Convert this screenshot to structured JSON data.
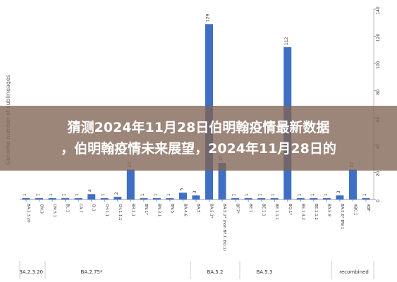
{
  "chart_data": {
    "type": "bar",
    "y_label": "Genome number of sublineages",
    "categories": [
      "BA.2.3.20",
      "CM.3",
      "CM.5.1",
      "BL.1",
      "CA.7",
      "CJ.1",
      "CH.1.1",
      "CH.1.1.1",
      "BR.2.1",
      "BN.1*",
      "BN.3.1",
      "BN.5",
      "BA.4.6",
      "BA.5",
      "BA.5.1*",
      "BA.5.2* (non BF.7, BQ.1)",
      "BF.7*",
      "BE.1",
      "BE.1.1",
      "BE.1.1.1",
      "BQ.1*",
      "BE.1.4.2",
      "BE.1.1.2",
      "BA.5.9",
      "BA.5.6* BW.1",
      "XBC.1",
      "XBF"
    ],
    "values": [
      1,
      1,
      1,
      1,
      1,
      4,
      1,
      2,
      22,
      1,
      1,
      1,
      5,
      3,
      129,
      27,
      1,
      1,
      1,
      1,
      112,
      1,
      1,
      1,
      3,
      22,
      1
    ],
    "color": "#3f6fc4",
    "groups": [
      "BA.2.3.20",
      "BA.2.75*",
      "BA.5.2",
      "BA.5.3",
      "recombined"
    ],
    "ylim": [
      0,
      140
    ],
    "yticks": [
      0,
      20,
      40,
      60,
      80,
      100,
      120,
      140
    ]
  },
  "overlay": {
    "lines": [
      "猜测2024年11月28日伯明翰疫情最新数据",
      "，伯明翰疫情未来展望，2024年11月28日的"
    ]
  }
}
